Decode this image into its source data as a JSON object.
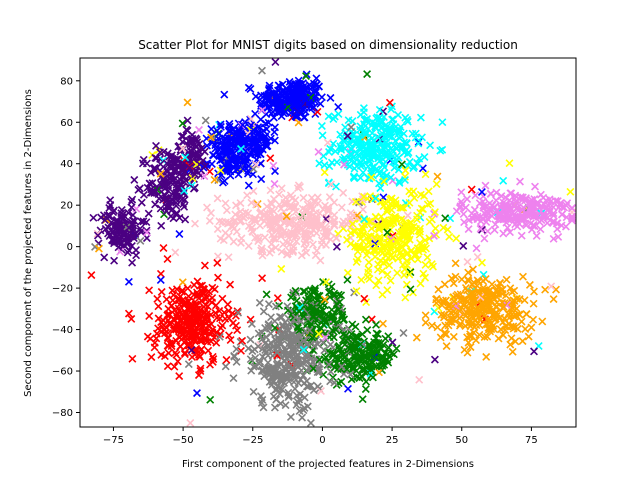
{
  "chart_data": {
    "type": "scatter",
    "title": "Scatter Plot for MNIST digits based on dimensionality reduction",
    "xlabel": "First component of the projected features in 2-Dimensions",
    "ylabel": "Second component of the projected features in 2-Dimensions",
    "xlim": [
      -87,
      91
    ],
    "ylim": [
      -87,
      91
    ],
    "xticks": [
      -75,
      -50,
      -25,
      0,
      25,
      50,
      75
    ],
    "yticks": [
      -80,
      -60,
      -40,
      -20,
      0,
      20,
      40,
      60,
      80
    ],
    "grid": false,
    "legend": "none",
    "marker": "x",
    "series": [
      {
        "color": "#0000ff",
        "clusters": [
          {
            "cx": -11,
            "cy": 71,
            "sx": 6,
            "sy": 5,
            "n": 230
          },
          {
            "cx": -29,
            "cy": 52,
            "sx": 5,
            "sy": 4,
            "n": 150
          },
          {
            "cx": -31,
            "cy": 41,
            "sx": 5,
            "sy": 4,
            "n": 110
          }
        ]
      },
      {
        "color": "#00ffff",
        "clusters": [
          {
            "cx": 19,
            "cy": 48,
            "sx": 8,
            "sy": 9,
            "n": 280
          }
        ]
      },
      {
        "color": "#4b0082",
        "clusters": [
          {
            "cx": -72,
            "cy": 8,
            "sx": 4,
            "sy": 6,
            "n": 120
          },
          {
            "cx": -55,
            "cy": 30,
            "sx": 4,
            "sy": 9,
            "n": 140
          },
          {
            "cx": -47,
            "cy": 44,
            "sx": 3,
            "sy": 6,
            "n": 70
          }
        ]
      },
      {
        "color": "#ffc0cb",
        "clusters": [
          {
            "cx": -11,
            "cy": 12,
            "sx": 13,
            "sy": 7,
            "n": 300
          }
        ]
      },
      {
        "color": "#ffff00",
        "clusters": [
          {
            "cx": 25,
            "cy": 5,
            "sx": 8,
            "sy": 12,
            "n": 280
          }
        ]
      },
      {
        "color": "#ee82ee",
        "clusters": [
          {
            "cx": 70,
            "cy": 17,
            "sx": 10,
            "sy": 5,
            "n": 240
          }
        ]
      },
      {
        "color": "#ffa500",
        "clusters": [
          {
            "cx": 58,
            "cy": -30,
            "sx": 9,
            "sy": 8,
            "n": 280
          }
        ]
      },
      {
        "color": "#ff0000",
        "clusters": [
          {
            "cx": -47,
            "cy": -37,
            "sx": 7,
            "sy": 10,
            "n": 300
          }
        ]
      },
      {
        "color": "#808080",
        "clusters": [
          {
            "cx": -12,
            "cy": -53,
            "sx": 9,
            "sy": 12,
            "n": 320
          }
        ]
      },
      {
        "color": "#008000",
        "clusters": [
          {
            "cx": -2,
            "cy": -33,
            "sx": 6,
            "sy": 6,
            "n": 150
          },
          {
            "cx": 13,
            "cy": -53,
            "sx": 7,
            "sy": 6,
            "n": 170
          }
        ]
      }
    ]
  }
}
